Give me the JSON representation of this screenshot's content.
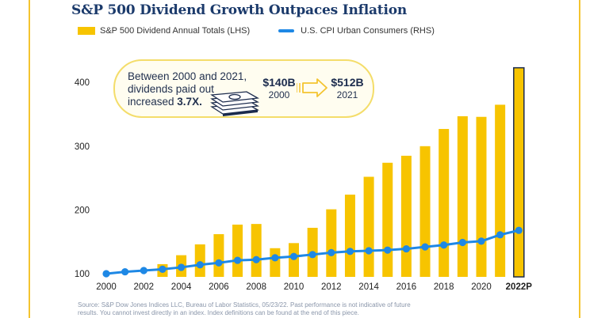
{
  "chart_data": {
    "type": "bar+line",
    "title": "S&P 500 Dividend Growth Outpaces Inflation",
    "categories": [
      "2000",
      "2001",
      "2002",
      "2003",
      "2004",
      "2005",
      "2006",
      "2007",
      "2008",
      "2009",
      "2010",
      "2011",
      "2012",
      "2013",
      "2014",
      "2015",
      "2016",
      "2017",
      "2018",
      "2019",
      "2020",
      "2021",
      "2022P"
    ],
    "x_tick_labels": [
      "2000",
      "2002",
      "2004",
      "2006",
      "2008",
      "2010",
      "2012",
      "2014",
      "2016",
      "2018",
      "2020",
      "2022P"
    ],
    "series": [
      {
        "name": "S&P 500 Dividend Annual Totals (LHS)",
        "kind": "bar",
        "color": "#f7c400",
        "values": [
          null,
          null,
          null,
          115,
          129,
          146,
          162,
          177,
          178,
          140,
          148,
          172,
          201,
          224,
          252,
          274,
          285,
          300,
          327,
          347,
          346,
          365,
          423
        ]
      },
      {
        "name": "U.S. CPI Urban Consumers (RHS)",
        "kind": "line",
        "color": "#1e88e5",
        "values": [
          100,
          103,
          105,
          107,
          110,
          114,
          117,
          121,
          122,
          125,
          127,
          130,
          133,
          135,
          136,
          137,
          139,
          142,
          145,
          149,
          151,
          161,
          168
        ]
      }
    ],
    "ylim": [
      95,
      445
    ],
    "y_ticks": [
      100,
      200,
      300,
      400
    ],
    "highlight_category": "2022P",
    "legend_position": "top-left"
  },
  "callout": {
    "text_line1": "Between 2000 and 2021,",
    "text_line2": "dividends paid out",
    "text_line3_prefix": "increased ",
    "text_line3_bold": "3.7X.",
    "from_amount": "$140B",
    "from_year": "2000",
    "to_amount": "$512B",
    "to_year": "2021"
  },
  "footer": {
    "line1": "Source: S&P Dow Jones Indices LLC, Bureau of Labor Statistics, 05/23/22. Past performance is not indicative of future",
    "line2": "results. You cannot invest directly in an index. Index definitions can be found at the end of this piece."
  },
  "colors": {
    "accent": "#f7c400",
    "line": "#1e88e5",
    "title": "#1b3a6b",
    "highlight_border": "#1b2b4d"
  }
}
